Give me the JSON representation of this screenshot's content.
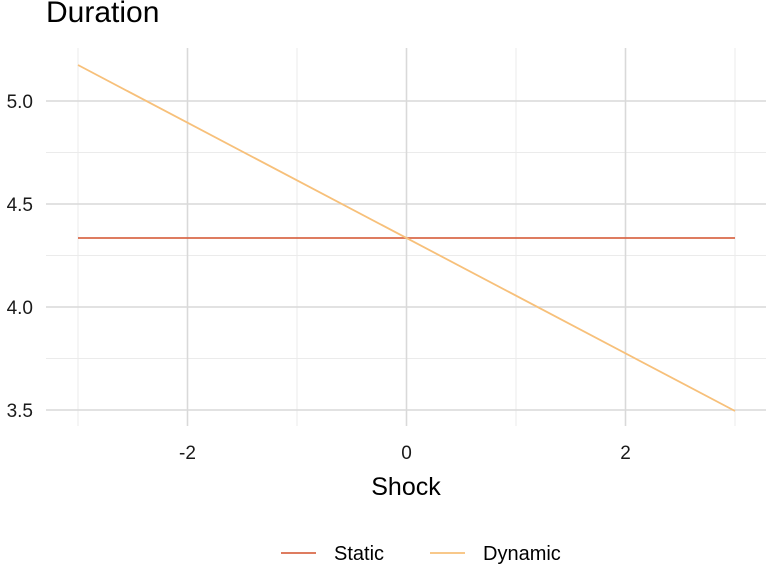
{
  "chart_data": {
    "type": "line",
    "title": "Duration",
    "xlabel": "Shock",
    "ylabel": "",
    "xlim": [
      -3.0,
      3.0
    ],
    "ylim": [
      3.45,
      5.27
    ],
    "x_ticks": [
      -2,
      0,
      2
    ],
    "x_tick_labels": [
      "-2",
      "0",
      "2"
    ],
    "y_ticks": [
      3.5,
      4.0,
      4.5,
      5.0
    ],
    "y_tick_labels": [
      "3.5",
      "4.0",
      "4.5",
      "5.0"
    ],
    "grid": true,
    "legend": "bottom",
    "series": [
      {
        "name": "Static",
        "color": "#D9694A",
        "x": [
          -3,
          3
        ],
        "y": [
          4.335,
          4.335
        ]
      },
      {
        "name": "Dynamic",
        "color": "#F7C07A",
        "x": [
          -3,
          3
        ],
        "y": [
          5.175,
          3.495
        ]
      }
    ]
  }
}
